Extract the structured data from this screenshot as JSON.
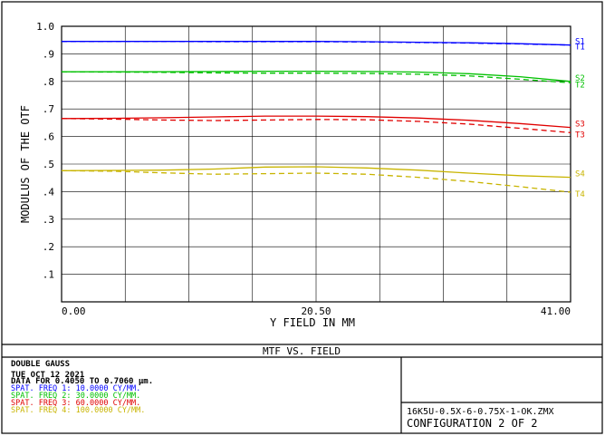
{
  "chart_data": {
    "type": "line",
    "title": "MTF VS. FIELD",
    "ylabel": "MODULUS OF THE OTF",
    "xlabel": "Y FIELD IN  MM",
    "x_ticks": [
      "0.00",
      "20.50",
      "41.00"
    ],
    "y_ticks": [
      "1.0",
      ".9",
      ".8",
      ".7",
      ".6",
      ".5",
      ".4",
      ".3",
      ".2",
      ".1"
    ],
    "xlim": [
      0,
      41
    ],
    "ylim": [
      0,
      1.0
    ],
    "grid": true,
    "x": [
      0,
      4.1,
      8.2,
      12.3,
      16.4,
      20.5,
      24.6,
      28.7,
      32.8,
      36.9,
      41.0
    ],
    "series": [
      {
        "name": "S1",
        "color": "#0000ff",
        "dashed": false,
        "values": [
          0.945,
          0.945,
          0.945,
          0.945,
          0.945,
          0.945,
          0.944,
          0.942,
          0.94,
          0.937,
          0.932
        ]
      },
      {
        "name": "T1",
        "color": "#0000ff",
        "dashed": true,
        "values": [
          0.945,
          0.945,
          0.945,
          0.944,
          0.944,
          0.944,
          0.943,
          0.941,
          0.939,
          0.936,
          0.932
        ]
      },
      {
        "name": "S2",
        "color": "#00c000",
        "dashed": false,
        "values": [
          0.835,
          0.835,
          0.835,
          0.836,
          0.837,
          0.837,
          0.836,
          0.834,
          0.828,
          0.817,
          0.8
        ]
      },
      {
        "name": "T2",
        "color": "#00c000",
        "dashed": true,
        "values": [
          0.835,
          0.834,
          0.833,
          0.831,
          0.83,
          0.83,
          0.829,
          0.826,
          0.82,
          0.808,
          0.795
        ]
      },
      {
        "name": "S3",
        "color": "#e00000",
        "dashed": false,
        "values": [
          0.665,
          0.666,
          0.668,
          0.671,
          0.674,
          0.674,
          0.672,
          0.667,
          0.659,
          0.647,
          0.633
        ]
      },
      {
        "name": "T3",
        "color": "#e00000",
        "dashed": true,
        "values": [
          0.665,
          0.663,
          0.66,
          0.658,
          0.66,
          0.662,
          0.661,
          0.655,
          0.645,
          0.63,
          0.614
        ]
      },
      {
        "name": "S4",
        "color": "#c8b400",
        "dashed": false,
        "values": [
          0.476,
          0.477,
          0.478,
          0.482,
          0.489,
          0.49,
          0.486,
          0.478,
          0.467,
          0.458,
          0.452
        ]
      },
      {
        "name": "T4",
        "color": "#c8b400",
        "dashed": true,
        "values": [
          0.476,
          0.474,
          0.468,
          0.463,
          0.465,
          0.467,
          0.463,
          0.452,
          0.437,
          0.418,
          0.398
        ]
      }
    ]
  },
  "info": {
    "title": "MTF VS. FIELD",
    "lens_name": "DOUBLE GAUSS",
    "date": "TUE OCT 12 2021",
    "data_for": "DATA FOR 0.4050 TO 0.7060 μm.",
    "frequencies": [
      {
        "text": "SPAT. FREQ 1:   10.0000 CY/MM.",
        "color": "#0000ff"
      },
      {
        "text": "SPAT. FREQ 2:   30.0000 CY/MM.",
        "color": "#00c000"
      },
      {
        "text": "SPAT. FREQ 3:   60.0000 CY/MM.",
        "color": "#e00000"
      },
      {
        "text": "SPAT. FREQ 4:  100.0000 CY/MM.",
        "color": "#c8b400"
      }
    ],
    "filename": "16K5U-0.5X-6-0.75X-1-OK.ZMX",
    "configuration": "CONFIGURATION 2 OF 2"
  }
}
